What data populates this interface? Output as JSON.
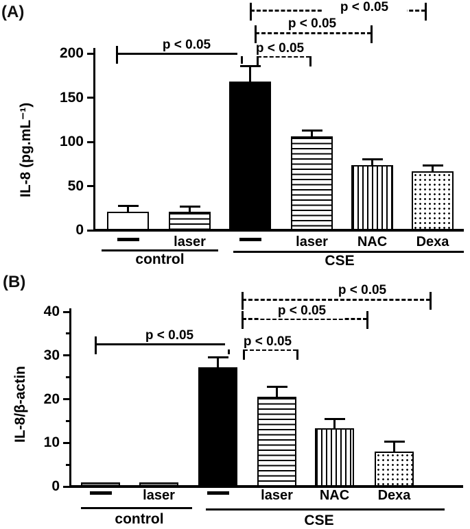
{
  "panels": [
    {
      "tag": "(A)"
    },
    {
      "tag": "(B)"
    }
  ],
  "colors": {
    "ink": "#000000",
    "background": "#ffffff",
    "panel_b_control_bar_fill": "#787878"
  },
  "chart_data": [
    {
      "type": "bar",
      "panel": "A",
      "title": "",
      "xlabel": "",
      "ylabel": "IL-8 (pg.mL⁻¹)",
      "ylim": [
        0,
        200
      ],
      "yticks": [
        0,
        50,
        100,
        150,
        200
      ],
      "minor_yticks": [],
      "grid": false,
      "categories": [
        "control untreated",
        "control laser",
        "CSE untreated",
        "CSE laser",
        "CSE NAC",
        "CSE Dexa"
      ],
      "bar_labels": [
        "—",
        "laser",
        "—",
        "laser",
        "NAC",
        "Dexa"
      ],
      "groups": [
        {
          "label": "control",
          "span": [
            0,
            1
          ]
        },
        {
          "label": "CSE",
          "span": [
            2,
            5
          ]
        }
      ],
      "values": [
        21,
        21,
        168,
        106,
        74,
        67
      ],
      "errors": [
        6.5,
        6,
        18,
        7,
        6,
        6
      ],
      "patterns": [
        "white",
        "hstripes",
        "black",
        "hstripes",
        "vstripes",
        "dots"
      ],
      "significance": [
        {
          "label": "p < 0.05",
          "style": "solid",
          "compares": [
            "control untreated",
            "CSE untreated"
          ]
        },
        {
          "label": "p < 0.05",
          "style": "dashed",
          "compares": [
            "CSE untreated",
            "CSE laser"
          ]
        },
        {
          "label": "p < 0.05",
          "style": "dashed",
          "compares": [
            "CSE untreated",
            "CSE NAC"
          ]
        },
        {
          "label": "p < 0.05",
          "style": "dashed",
          "compares": [
            "CSE untreated",
            "CSE Dexa"
          ]
        }
      ]
    },
    {
      "type": "bar",
      "panel": "B",
      "title": "",
      "xlabel": "",
      "ylabel": "IL-8/β-actin",
      "ylim": [
        0,
        40
      ],
      "yticks": [
        0,
        10,
        20,
        30,
        40
      ],
      "minor_yticks": [
        5,
        15,
        25,
        35
      ],
      "grid": false,
      "categories": [
        "control untreated",
        "control laser",
        "CSE untreated",
        "CSE laser",
        "CSE NAC",
        "CSE Dexa"
      ],
      "bar_labels": [
        "—",
        "laser",
        "—",
        "laser",
        "NAC",
        "Dexa"
      ],
      "groups": [
        {
          "label": "control",
          "span": [
            0,
            1
          ]
        },
        {
          "label": "CSE",
          "span": [
            2,
            5
          ]
        }
      ],
      "values": [
        0.6,
        0.6,
        27.3,
        20.6,
        13.4,
        8.0
      ],
      "errors": [
        0,
        0,
        2.2,
        2.2,
        2.1,
        2.2
      ],
      "patterns": [
        "gray",
        "gray",
        "black",
        "hstripes",
        "vstripes",
        "dots"
      ],
      "significance": [
        {
          "label": "p < 0.05",
          "style": "solid",
          "compares": [
            "control untreated",
            "CSE untreated"
          ]
        },
        {
          "label": "p < 0.05",
          "style": "dashed",
          "compares": [
            "CSE untreated",
            "CSE laser"
          ]
        },
        {
          "label": "p < 0.05",
          "style": "dashed",
          "compares": [
            "CSE untreated",
            "CSE NAC"
          ]
        },
        {
          "label": "p < 0.05",
          "style": "dashed",
          "compares": [
            "CSE untreated",
            "CSE Dexa"
          ]
        }
      ]
    }
  ]
}
